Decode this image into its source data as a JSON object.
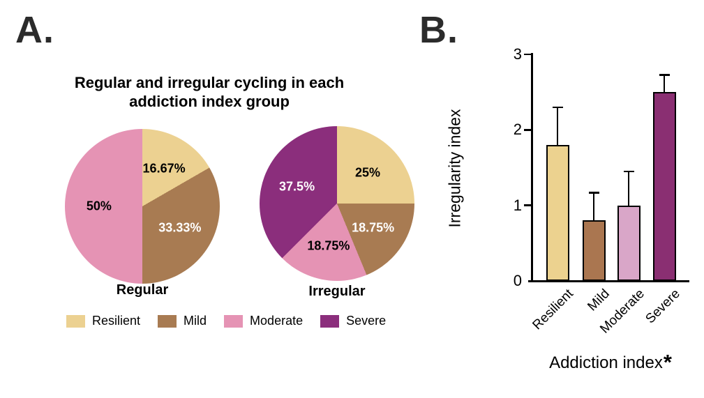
{
  "panel_a": {
    "label": "A.",
    "title_line1": "Regular and irregular cycling in each",
    "title_line2": "addiction index group",
    "legend": [
      {
        "label": "Resilient",
        "color": "#ECD191"
      },
      {
        "label": "Mild",
        "color": "#A87B52"
      },
      {
        "label": "Moderate",
        "color": "#E593B4"
      },
      {
        "label": "Severe",
        "color": "#8B2E7C"
      }
    ]
  },
  "panel_b": {
    "label": "B.",
    "ylabel": "Irregularity index",
    "xlabel": "Addiction index",
    "xlabel_asterisk": "*"
  },
  "chart_data": [
    {
      "type": "pie",
      "title": "Regular",
      "labels": [
        "Resilient",
        "Mild",
        "Moderate"
      ],
      "values_percent": [
        16.67,
        33.33,
        50
      ],
      "value_labels": [
        "16.67%",
        "33.33%",
        "50%"
      ],
      "colors": [
        "#ECD191",
        "#A87B52",
        "#E593B4"
      ],
      "label_colors": [
        "#000000",
        "#FFFFFF",
        "#000000"
      ],
      "start_angle": "12 o'clock",
      "direction": "clockwise"
    },
    {
      "type": "pie",
      "title": "Irregular",
      "labels": [
        "Resilient",
        "Mild",
        "Moderate",
        "Severe"
      ],
      "values_percent": [
        25,
        18.75,
        18.75,
        37.5
      ],
      "value_labels": [
        "25%",
        "18.75%",
        "18.75%",
        "37.5%"
      ],
      "colors": [
        "#ECD191",
        "#A87B52",
        "#E593B4",
        "#8B2E7C"
      ],
      "label_colors": [
        "#000000",
        "#FFFFFF",
        "#000000",
        "#FFFFFF"
      ],
      "start_angle": "12 o'clock",
      "direction": "clockwise"
    },
    {
      "type": "bar",
      "title": "",
      "categories": [
        "Resilient",
        "Mild",
        "Moderate",
        "Severe"
      ],
      "values": [
        1.8,
        0.8,
        1.0,
        2.5
      ],
      "errors_up": [
        0.5,
        0.37,
        0.45,
        0.23
      ],
      "bar_colors": [
        "#ECD28F",
        "#AA7650",
        "#D9A6C8",
        "#8A2F72"
      ],
      "xlabel": "Addiction index*",
      "ylabel": "Irregularity index",
      "ylim": [
        0,
        3
      ],
      "yticks": [
        0,
        1,
        2,
        3
      ],
      "grid": false,
      "legend_position": "none",
      "error_bars": "upper only, capped"
    }
  ]
}
